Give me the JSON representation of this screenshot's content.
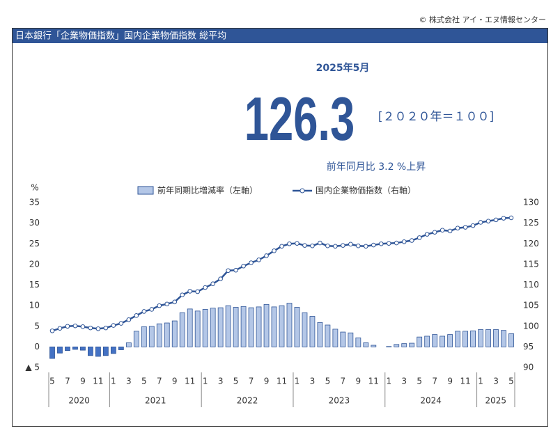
{
  "copyright": "© 株式会社 アイ・エヌ情報センター",
  "header_title": "日本銀行「企業物価指数」国内企業物価指数 総平均",
  "headline": {
    "period": "2025年5月",
    "value": "126.3",
    "base": "[２０２０年＝１００]",
    "change": "前年同月比 3.2 %上昇"
  },
  "chart_data": {
    "type": "combo",
    "y_unit": "%",
    "categories": [
      5,
      null,
      7,
      null,
      9,
      null,
      11,
      null,
      1,
      null,
      3,
      null,
      5,
      null,
      7,
      null,
      9,
      null,
      11,
      null,
      1,
      null,
      3,
      null,
      5,
      null,
      7,
      null,
      9,
      null,
      11,
      null,
      1,
      null,
      3,
      null,
      5,
      null,
      7,
      null,
      9,
      null,
      11,
      null,
      1,
      null,
      3,
      null,
      5,
      null,
      7,
      null,
      9,
      null,
      11,
      null,
      1,
      null,
      3,
      null,
      5
    ],
    "years": [
      "2020",
      "2021",
      "2022",
      "2023",
      "2024",
      "2025"
    ],
    "series": [
      {
        "name": "前年同期比増減率（左軸）",
        "color": "#b4c7e7",
        "border_color": "#2f5597",
        "negative_color": "#4472c4",
        "axis": "y",
        "values": [
          -2.8,
          -1.5,
          -0.9,
          -0.6,
          -0.8,
          -2.1,
          -2.3,
          -2.1,
          -1.6,
          -0.7,
          1.0,
          3.8,
          4.9,
          5.0,
          5.6,
          5.8,
          6.3,
          8.3,
          9.2,
          8.7,
          9.1,
          9.4,
          9.5,
          10.0,
          9.6,
          9.8,
          9.5,
          9.7,
          10.3,
          9.7,
          10.0,
          10.6,
          9.6,
          8.3,
          7.4,
          5.9,
          5.3,
          4.3,
          3.6,
          3.4,
          2.2,
          1.0,
          0.4,
          0.0,
          0.1,
          0.6,
          0.8,
          0.9,
          2.4,
          2.6,
          3.0,
          2.6,
          3.0,
          3.8,
          3.8,
          3.9,
          4.2,
          4.2,
          4.2,
          4.0,
          3.2
        ]
      },
      {
        "name": "国内企業物価指数（右軸）",
        "color": "#2f5597",
        "axis": "y2",
        "values": [
          98.9,
          99.5,
          100.0,
          100.1,
          99.9,
          99.6,
          99.4,
          99.6,
          100.2,
          100.7,
          101.6,
          102.6,
          103.6,
          104.1,
          105.0,
          105.4,
          105.9,
          107.6,
          108.5,
          108.4,
          109.4,
          110.3,
          111.5,
          113.5,
          113.6,
          114.6,
          115.4,
          116.1,
          117.1,
          118.3,
          119.4,
          120.0,
          120.1,
          119.6,
          119.5,
          120.2,
          119.5,
          119.4,
          119.6,
          119.9,
          119.5,
          119.4,
          119.7,
          120.0,
          120.1,
          120.2,
          120.5,
          120.8,
          121.5,
          122.3,
          122.8,
          123.3,
          123.1,
          123.8,
          124.0,
          124.4,
          125.2,
          125.5,
          125.8,
          126.2,
          126.3
        ]
      }
    ],
    "ylim": [
      -5,
      35
    ],
    "yticks": [
      {
        "value": -5,
        "label": "▲ 5"
      },
      0,
      5,
      10,
      15,
      20,
      25,
      30,
      35
    ],
    "y2lim": [
      90,
      130
    ],
    "y2ticks": [
      90,
      95,
      100,
      105,
      110,
      115,
      120,
      125,
      130
    ],
    "grid": false,
    "legend": "top"
  }
}
